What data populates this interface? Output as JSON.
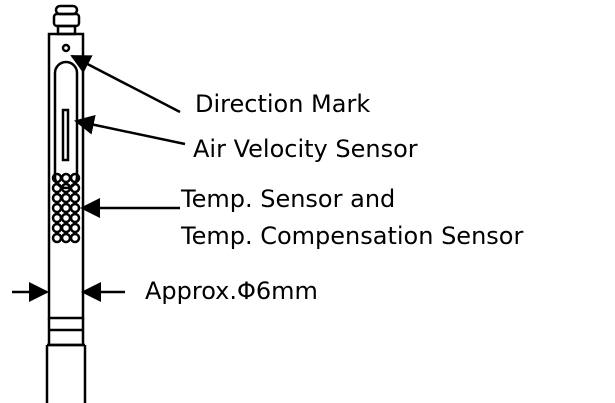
{
  "callouts": [
    {
      "lines": [
        "Direction Mark"
      ]
    },
    {
      "lines": [
        "Air Velocity Sensor"
      ]
    },
    {
      "lines": [
        "Temp. Sensor and",
        "Temp. Compensation Sensor"
      ]
    },
    {
      "lines": [
        "Approx.Φ6mm"
      ]
    }
  ]
}
